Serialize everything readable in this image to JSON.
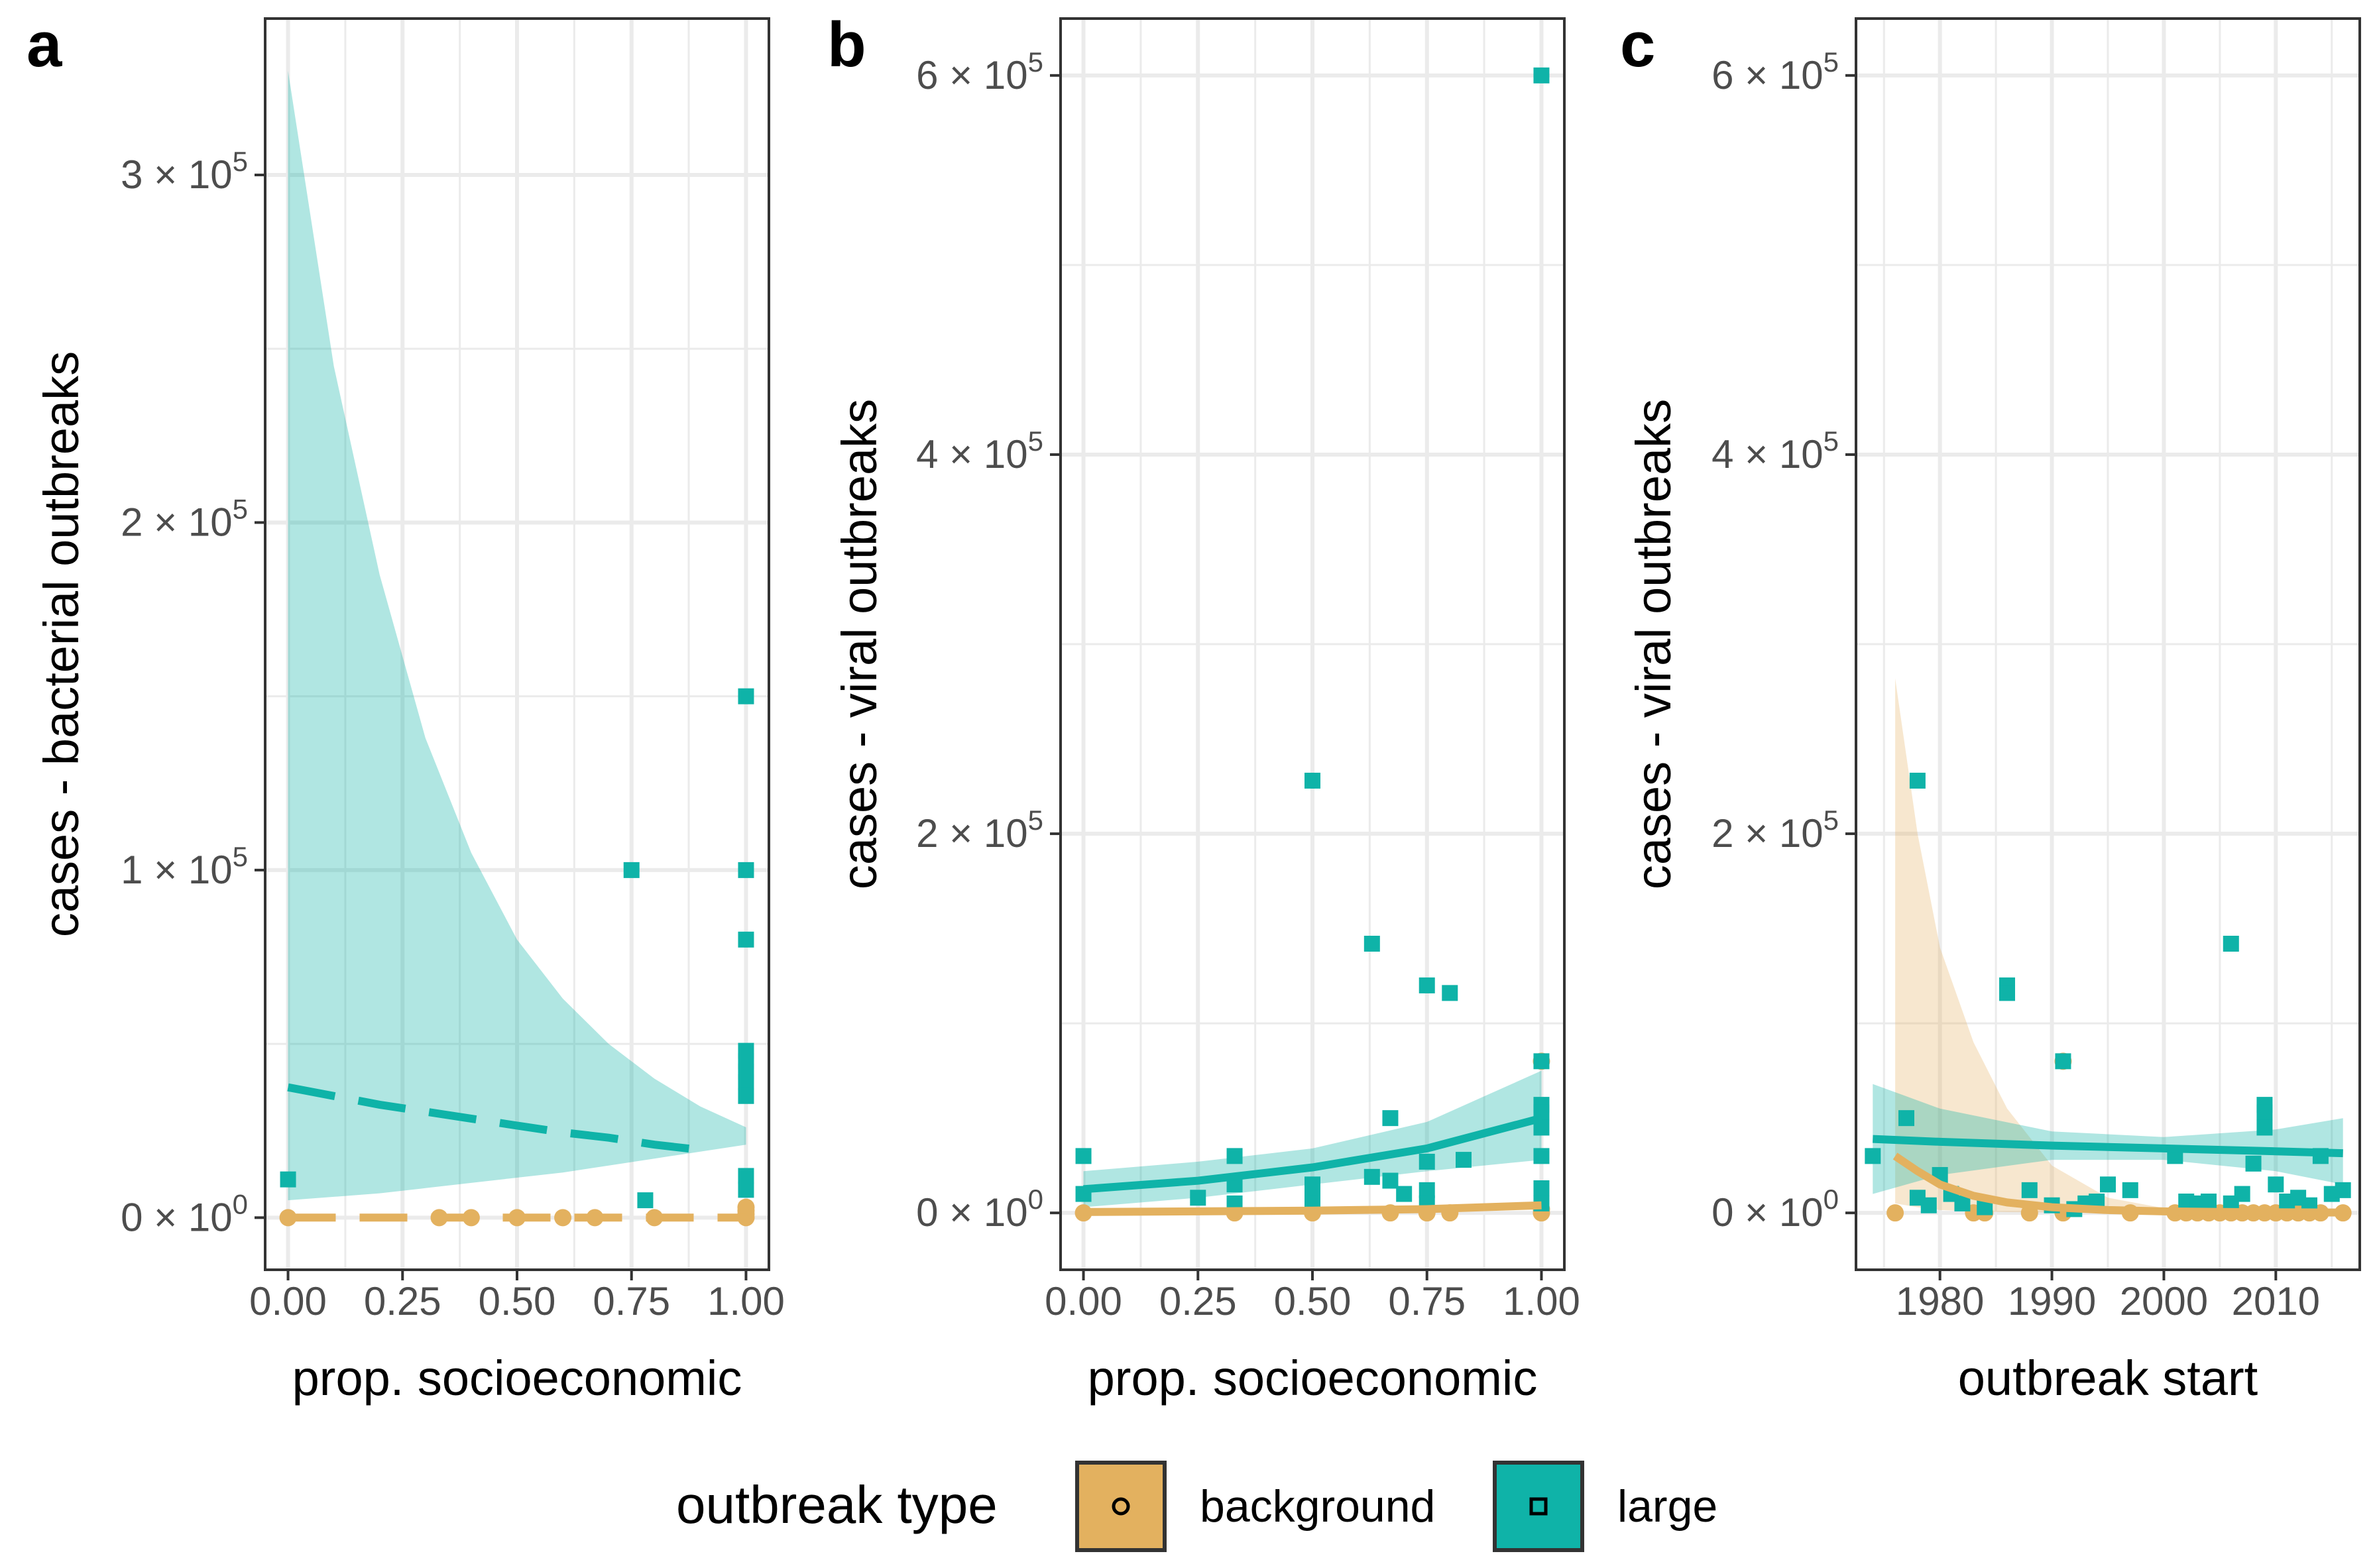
{
  "colors": {
    "background": "#E3B15F",
    "large": "#0FB3A8",
    "grid": "#EBEBEB",
    "axis": "#333333"
  },
  "legend": {
    "title": "outbreak type",
    "items": [
      {
        "key": "background",
        "label": "background",
        "symbol": "circle"
      },
      {
        "key": "large",
        "label": "large",
        "symbol": "square"
      }
    ]
  },
  "chart_data": [
    {
      "panel_label": "a",
      "type": "scatter",
      "xlabel": "prop. socioeconomic",
      "ylabel": "cases - bacterial outbreaks",
      "xlim": [
        -0.05,
        1.05
      ],
      "ylim": [
        -15000,
        345000
      ],
      "xticks": [
        0,
        0.25,
        0.5,
        0.75,
        1
      ],
      "xtick_labels": [
        "0.00",
        "0.25",
        "0.50",
        "0.75",
        "1.00"
      ],
      "yticks": [
        0,
        100000,
        200000,
        300000
      ],
      "ytick_labels": [
        {
          "mant": "0",
          "exp": "0"
        },
        {
          "mant": "1",
          "exp": "5"
        },
        {
          "mant": "2",
          "exp": "5"
        },
        {
          "mant": "3",
          "exp": "5"
        }
      ],
      "series": [
        {
          "name": "background",
          "points": [
            [
              0,
              0
            ],
            [
              0.33,
              0
            ],
            [
              0.4,
              0
            ],
            [
              0.5,
              0
            ],
            [
              0.6,
              0
            ],
            [
              0.67,
              0
            ],
            [
              0.8,
              0
            ],
            [
              1,
              0
            ],
            [
              1,
              1000
            ],
            [
              1,
              2000
            ],
            [
              1,
              3000
            ]
          ],
          "fit": {
            "x": [
              0,
              1
            ],
            "y": [
              0,
              0
            ],
            "dashed": true
          },
          "band": null
        },
        {
          "name": "large",
          "points": [
            [
              0,
              11000
            ],
            [
              0.75,
              100000
            ],
            [
              0.78,
              5000
            ],
            [
              1,
              150000
            ],
            [
              1,
              100000
            ],
            [
              1,
              80000
            ],
            [
              1,
              48000
            ],
            [
              1,
              45000
            ],
            [
              1,
              42000
            ],
            [
              1,
              39000
            ],
            [
              1,
              35000
            ],
            [
              1,
              12000
            ],
            [
              1,
              8000
            ]
          ],
          "fit": {
            "x": [
              0,
              0.1,
              0.2,
              0.3,
              0.4,
              0.5,
              0.6,
              0.7,
              0.8,
              0.9
            ],
            "y": [
              37500,
              35000,
              32500,
              30500,
              28500,
              26500,
              24500,
              23000,
              21000,
              19500
            ],
            "dashed": true
          },
          "band": {
            "x": [
              0,
              0.1,
              0.2,
              0.3,
              0.4,
              0.5,
              0.6,
              0.7,
              0.8,
              0.9,
              1
            ],
            "lower": [
              5000,
              6000,
              7000,
              8500,
              10000,
              11500,
              13000,
              15000,
              17000,
              19000,
              21000
            ],
            "upper": [
              330000,
              245000,
              185000,
              138000,
              105000,
              80000,
              63000,
              50000,
              40000,
              32000,
              26000
            ]
          }
        }
      ]
    },
    {
      "panel_label": "b",
      "type": "scatter",
      "xlabel": "prop. socioeconomic",
      "ylabel": "cases - viral outbreaks",
      "xlim": [
        -0.05,
        1.05
      ],
      "ylim": [
        -30000,
        630000
      ],
      "xticks": [
        0,
        0.25,
        0.5,
        0.75,
        1
      ],
      "xtick_labels": [
        "0.00",
        "0.25",
        "0.50",
        "0.75",
        "1.00"
      ],
      "yticks": [
        0,
        200000,
        400000,
        600000
      ],
      "ytick_labels": [
        {
          "mant": "0",
          "exp": "0"
        },
        {
          "mant": "2",
          "exp": "5"
        },
        {
          "mant": "4",
          "exp": "5"
        },
        {
          "mant": "6",
          "exp": "5"
        }
      ],
      "series": [
        {
          "name": "background",
          "points": [
            [
              0,
              0
            ],
            [
              0.33,
              0
            ],
            [
              0.5,
              0
            ],
            [
              0.67,
              0
            ],
            [
              0.75,
              0
            ],
            [
              0.8,
              0
            ],
            [
              1,
              0
            ],
            [
              1,
              2000
            ],
            [
              1,
              80000
            ]
          ],
          "fit": {
            "x": [
              0,
              0.25,
              0.5,
              0.75,
              1
            ],
            "y": [
              500,
              800,
              1200,
              2000,
              4000
            ],
            "dashed": false
          },
          "band": null
        },
        {
          "name": "large",
          "points": [
            [
              0,
              30000
            ],
            [
              0,
              10000
            ],
            [
              0.25,
              8000
            ],
            [
              0.33,
              30000
            ],
            [
              0.33,
              15000
            ],
            [
              0.33,
              5000
            ],
            [
              0.5,
              228000
            ],
            [
              0.5,
              15000
            ],
            [
              0.5,
              8000
            ],
            [
              0.5,
              5000
            ],
            [
              0.63,
              142000
            ],
            [
              0.63,
              19000
            ],
            [
              0.67,
              50000
            ],
            [
              0.67,
              17000
            ],
            [
              0.7,
              10000
            ],
            [
              0.75,
              120000
            ],
            [
              0.75,
              27000
            ],
            [
              0.75,
              12000
            ],
            [
              0.75,
              5000
            ],
            [
              0.8,
              116000
            ],
            [
              0.83,
              28000
            ],
            [
              1,
              600000
            ],
            [
              1,
              80000
            ],
            [
              1,
              57000
            ],
            [
              1,
              53000
            ],
            [
              1,
              45000
            ],
            [
              1,
              30000
            ],
            [
              1,
              13000
            ],
            [
              1,
              5000
            ]
          ],
          "fit": {
            "x": [
              0,
              0.25,
              0.5,
              0.75,
              1
            ],
            "y": [
              12500,
              17000,
              24000,
              34000,
              50000
            ],
            "dashed": false
          },
          "band": {
            "x": [
              0,
              0.25,
              0.5,
              0.75,
              1
            ],
            "lower": [
              3000,
              8000,
              15000,
              22000,
              28000
            ],
            "upper": [
              22000,
              27000,
              34000,
              48000,
              75000
            ]
          }
        }
      ]
    },
    {
      "panel_label": "c",
      "type": "scatter",
      "xlabel": "outbreak start",
      "ylabel": "cases - viral outbreaks",
      "xlim": [
        1972.5,
        2017.5
      ],
      "ylim": [
        -30000,
        630000
      ],
      "xticks": [
        1980,
        1990,
        2000,
        2010
      ],
      "xtick_labels": [
        "1980",
        "1990",
        "2000",
        "2010"
      ],
      "yticks": [
        0,
        200000,
        400000,
        600000
      ],
      "ytick_labels": [
        {
          "mant": "0",
          "exp": "0"
        },
        {
          "mant": "2",
          "exp": "5"
        },
        {
          "mant": "4",
          "exp": "5"
        },
        {
          "mant": "6",
          "exp": "5"
        }
      ],
      "series": [
        {
          "name": "background",
          "points": [
            [
              1976,
              0
            ],
            [
              1983,
              0
            ],
            [
              1984,
              0
            ],
            [
              1988,
              0
            ],
            [
              1991,
              0
            ],
            [
              1991,
              80000
            ],
            [
              1997,
              0
            ],
            [
              2001,
              0
            ],
            [
              2002,
              0
            ],
            [
              2003,
              0
            ],
            [
              2004,
              0
            ],
            [
              2005,
              0
            ],
            [
              2006,
              0
            ],
            [
              2007,
              0
            ],
            [
              2008,
              0
            ],
            [
              2009,
              0
            ],
            [
              2010,
              0
            ],
            [
              2011,
              0
            ],
            [
              2012,
              0
            ],
            [
              2013,
              0
            ],
            [
              2014,
              0
            ],
            [
              2016,
              0
            ]
          ],
          "fit": {
            "x": [
              1976,
              1978,
              1980,
              1983,
              1986,
              1990,
              1995,
              2000,
              2005,
              2010,
              2016
            ],
            "y": [
              30000,
              22000,
              15000,
              9000,
              5500,
              3000,
              1500,
              800,
              500,
              300,
              200
            ],
            "dashed": false
          },
          "band": {
            "x": [
              1976,
              1978,
              1980,
              1983,
              1986,
              1990,
              1995,
              2000,
              2016
            ],
            "lower": [
              5000,
              3000,
              1500,
              800,
              400,
              200,
              100,
              50,
              0
            ],
            "upper": [
              282000,
              200000,
              140000,
              90000,
              55000,
              25000,
              8000,
              2500,
              500
            ]
          }
        },
        {
          "name": "large",
          "points": [
            [
              1974,
              30000
            ],
            [
              1977,
              50000
            ],
            [
              1978,
              228000
            ],
            [
              1978,
              8000
            ],
            [
              1979,
              4000
            ],
            [
              1980,
              20000
            ],
            [
              1981,
              10000
            ],
            [
              1982,
              5000
            ],
            [
              1984,
              3000
            ],
            [
              1986,
              120000
            ],
            [
              1986,
              116000
            ],
            [
              1988,
              12000
            ],
            [
              1990,
              4000
            ],
            [
              1991,
              80000
            ],
            [
              1992,
              2000
            ],
            [
              1993,
              5000
            ],
            [
              1994,
              6000
            ],
            [
              1995,
              15000
            ],
            [
              1997,
              12000
            ],
            [
              2001,
              30000
            ],
            [
              2002,
              6000
            ],
            [
              2003,
              5000
            ],
            [
              2004,
              6000
            ],
            [
              2006,
              142000
            ],
            [
              2006,
              5000
            ],
            [
              2007,
              10000
            ],
            [
              2008,
              26000
            ],
            [
              2009,
              57000
            ],
            [
              2009,
              53000
            ],
            [
              2009,
              45000
            ],
            [
              2010,
              15000
            ],
            [
              2011,
              6000
            ],
            [
              2012,
              8000
            ],
            [
              2013,
              4000
            ],
            [
              2014,
              30000
            ],
            [
              2015,
              10000
            ],
            [
              2016,
              12000
            ]
          ],
          "fit": {
            "x": [
              1974,
              1980,
              1990,
              2000,
              2010,
              2016
            ],
            "y": [
              39000,
              37500,
              35500,
              34000,
              32500,
              31500
            ],
            "dashed": false
          },
          "band": {
            "x": [
              1974,
              1980,
              1990,
              2000,
              2010,
              2016
            ],
            "lower": [
              10000,
              20000,
              28000,
              28000,
              22000,
              15000
            ],
            "upper": [
              68000,
              55000,
              43000,
              40000,
              44000,
              50000
            ]
          }
        }
      ]
    }
  ]
}
